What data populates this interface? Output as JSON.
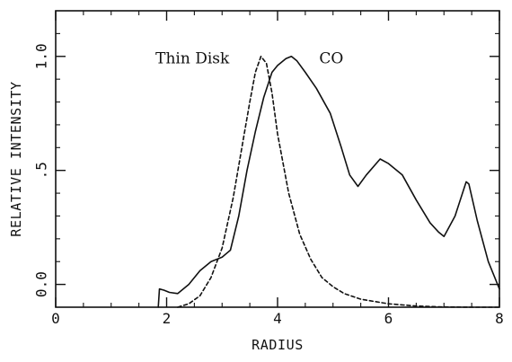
{
  "chart_data": {
    "type": "line",
    "xlabel": "RADIUS",
    "ylabel": "RELATIVE INTENSITY",
    "xlim": [
      0,
      8
    ],
    "ylim": [
      -0.1,
      1.2
    ],
    "x_ticks": [
      0,
      2,
      4,
      6,
      8
    ],
    "x_tick_labels": [
      "0",
      "2",
      "4",
      "6",
      "8"
    ],
    "y_ticks": [
      0.0,
      0.5,
      1.0
    ],
    "y_tick_labels": [
      "0.0",
      ".5",
      "1.0"
    ],
    "grid": false,
    "colors": {
      "ink": "#111111",
      "background": "#ffffff"
    },
    "series": [
      {
        "name": "CO",
        "style": "solid",
        "label_at": {
          "x": 4.75,
          "y": 0.97
        },
        "points": [
          [
            1.85,
            -0.1
          ],
          [
            1.87,
            -0.02
          ],
          [
            1.95,
            -0.025
          ],
          [
            2.05,
            -0.035
          ],
          [
            2.2,
            -0.04
          ],
          [
            2.4,
            -0.0
          ],
          [
            2.6,
            0.06
          ],
          [
            2.8,
            0.1
          ],
          [
            3.0,
            0.12
          ],
          [
            3.15,
            0.15
          ],
          [
            3.3,
            0.3
          ],
          [
            3.45,
            0.5
          ],
          [
            3.6,
            0.67
          ],
          [
            3.75,
            0.82
          ],
          [
            3.9,
            0.93
          ],
          [
            4.0,
            0.96
          ],
          [
            4.15,
            0.99
          ],
          [
            4.25,
            1.0
          ],
          [
            4.35,
            0.98
          ],
          [
            4.5,
            0.93
          ],
          [
            4.7,
            0.86
          ],
          [
            4.95,
            0.75
          ],
          [
            5.15,
            0.6
          ],
          [
            5.3,
            0.48
          ],
          [
            5.45,
            0.43
          ],
          [
            5.6,
            0.48
          ],
          [
            5.85,
            0.55
          ],
          [
            6.0,
            0.53
          ],
          [
            6.25,
            0.48
          ],
          [
            6.5,
            0.37
          ],
          [
            6.75,
            0.27
          ],
          [
            6.9,
            0.23
          ],
          [
            7.0,
            0.21
          ],
          [
            7.2,
            0.3
          ],
          [
            7.4,
            0.45
          ],
          [
            7.45,
            0.44
          ],
          [
            7.6,
            0.28
          ],
          [
            7.8,
            0.1
          ],
          [
            8.0,
            -0.02
          ]
        ]
      },
      {
        "name": "Thin Disk",
        "style": "dashed",
        "label_at": {
          "x": 1.8,
          "y": 0.97
        },
        "points": [
          [
            2.2,
            -0.1
          ],
          [
            2.4,
            -0.085
          ],
          [
            2.6,
            -0.05
          ],
          [
            2.8,
            0.03
          ],
          [
            3.0,
            0.16
          ],
          [
            3.2,
            0.38
          ],
          [
            3.4,
            0.66
          ],
          [
            3.5,
            0.8
          ],
          [
            3.6,
            0.93
          ],
          [
            3.7,
            1.0
          ],
          [
            3.8,
            0.97
          ],
          [
            3.9,
            0.84
          ],
          [
            4.0,
            0.66
          ],
          [
            4.2,
            0.4
          ],
          [
            4.4,
            0.22
          ],
          [
            4.6,
            0.11
          ],
          [
            4.8,
            0.03
          ],
          [
            5.0,
            -0.01
          ],
          [
            5.2,
            -0.04
          ],
          [
            5.5,
            -0.065
          ],
          [
            6.0,
            -0.085
          ],
          [
            6.5,
            -0.095
          ],
          [
            7.0,
            -0.099
          ],
          [
            7.5,
            -0.1
          ],
          [
            8.0,
            -0.1
          ]
        ]
      }
    ]
  }
}
